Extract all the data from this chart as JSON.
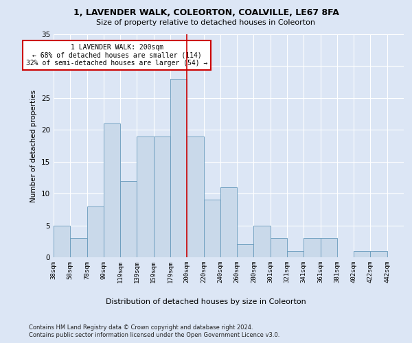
{
  "title": "1, LAVENDER WALK, COLEORTON, COALVILLE, LE67 8FA",
  "subtitle": "Size of property relative to detached houses in Coleorton",
  "xlabel_bottom": "Distribution of detached houses by size in Coleorton",
  "ylabel": "Number of detached properties",
  "bin_labels": [
    "38sqm",
    "58sqm",
    "78sqm",
    "99sqm",
    "119sqm",
    "139sqm",
    "159sqm",
    "179sqm",
    "200sqm",
    "220sqm",
    "240sqm",
    "260sqm",
    "280sqm",
    "301sqm",
    "321sqm",
    "341sqm",
    "361sqm",
    "381sqm",
    "402sqm",
    "422sqm",
    "442sqm"
  ],
  "values": [
    5,
    3,
    8,
    21,
    12,
    19,
    19,
    28,
    19,
    9,
    11,
    2,
    5,
    3,
    1,
    3,
    3,
    0,
    1,
    1,
    0
  ],
  "bar_color": "#c9d9ea",
  "bar_edgecolor": "#6699bb",
  "marker_bin_index": 8,
  "marker_color": "#cc0000",
  "ylim": [
    0,
    35
  ],
  "yticks": [
    0,
    5,
    10,
    15,
    20,
    25,
    30,
    35
  ],
  "background_color": "#dce6f5",
  "grid_color": "#ffffff",
  "annotation_text": "1 LAVENDER WALK: 200sqm\n← 68% of detached houses are smaller (114)\n32% of semi-detached houses are larger (54) →",
  "annotation_box_facecolor": "#ffffff",
  "annotation_box_edgecolor": "#cc0000",
  "fig_facecolor": "#dce6f5",
  "title_fontsize": 9,
  "subtitle_fontsize": 8,
  "footer1": "Contains HM Land Registry data © Crown copyright and database right 2024.",
  "footer2": "Contains public sector information licensed under the Open Government Licence v3.0."
}
